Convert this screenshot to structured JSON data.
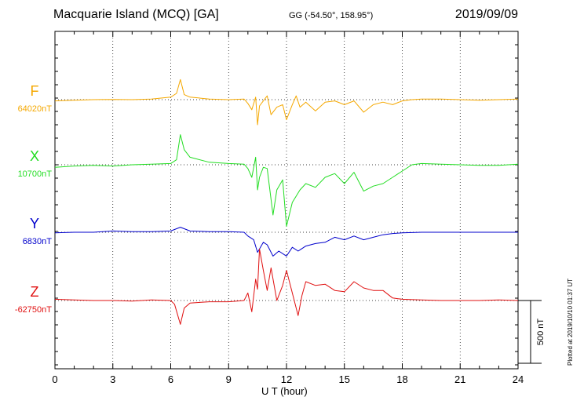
{
  "header": {
    "station": "Macquarie Island (MCQ)  [GA]",
    "coords": "GG (-54.50°, 158.95°)",
    "date": "2019/09/09"
  },
  "footer": {
    "plotted": "Plotted at 2019/10/10 01:37 UT"
  },
  "chart_data": {
    "type": "line",
    "xlabel": "U T (hour)",
    "xlim": [
      0,
      24
    ],
    "xticks": [
      0,
      3,
      6,
      9,
      12,
      15,
      18,
      21,
      24
    ],
    "scale_bar": {
      "label": "500 nT",
      "value": 500
    },
    "grid": "dotted",
    "series": [
      {
        "name": "F",
        "baseline": "64020nT",
        "color": "#f5a800",
        "points": [
          [
            0,
            -10
          ],
          [
            1,
            -5
          ],
          [
            2,
            0
          ],
          [
            3,
            2
          ],
          [
            4,
            0
          ],
          [
            5,
            5
          ],
          [
            6,
            20
          ],
          [
            6.3,
            50
          ],
          [
            6.5,
            160
          ],
          [
            6.7,
            40
          ],
          [
            7,
            20
          ],
          [
            8,
            5
          ],
          [
            9,
            0
          ],
          [
            9.8,
            5
          ],
          [
            10,
            -30
          ],
          [
            10.2,
            -80
          ],
          [
            10.4,
            20
          ],
          [
            10.5,
            -200
          ],
          [
            10.6,
            -50
          ],
          [
            10.8,
            -10
          ],
          [
            11,
            30
          ],
          [
            11.2,
            -120
          ],
          [
            11.5,
            -60
          ],
          [
            11.8,
            -40
          ],
          [
            12,
            -160
          ],
          [
            12.3,
            -40
          ],
          [
            12.5,
            30
          ],
          [
            12.7,
            -60
          ],
          [
            13,
            -20
          ],
          [
            13.5,
            -90
          ],
          [
            14,
            -20
          ],
          [
            14.5,
            -10
          ],
          [
            15,
            -40
          ],
          [
            15.5,
            -10
          ],
          [
            16,
            -100
          ],
          [
            16.5,
            -40
          ],
          [
            17,
            -20
          ],
          [
            17.5,
            -40
          ],
          [
            18,
            -10
          ],
          [
            18.5,
            0
          ],
          [
            19,
            5
          ],
          [
            20,
            5
          ],
          [
            21,
            0
          ],
          [
            22,
            -5
          ],
          [
            23,
            0
          ],
          [
            24,
            5
          ]
        ]
      },
      {
        "name": "X",
        "baseline": "10700nT",
        "color": "#22dd22",
        "points": [
          [
            0,
            -20
          ],
          [
            1,
            -10
          ],
          [
            2,
            -5
          ],
          [
            3,
            -10
          ],
          [
            4,
            0
          ],
          [
            5,
            5
          ],
          [
            6,
            10
          ],
          [
            6.3,
            40
          ],
          [
            6.5,
            240
          ],
          [
            6.7,
            120
          ],
          [
            7,
            60
          ],
          [
            8,
            20
          ],
          [
            9,
            10
          ],
          [
            9.8,
            5
          ],
          [
            10,
            -30
          ],
          [
            10.2,
            -100
          ],
          [
            10.4,
            60
          ],
          [
            10.5,
            -200
          ],
          [
            10.6,
            -100
          ],
          [
            10.8,
            -20
          ],
          [
            11,
            -30
          ],
          [
            11.3,
            -400
          ],
          [
            11.5,
            -200
          ],
          [
            11.8,
            -120
          ],
          [
            12,
            -490
          ],
          [
            12.3,
            -300
          ],
          [
            12.5,
            -250
          ],
          [
            12.7,
            -200
          ],
          [
            13,
            -150
          ],
          [
            13.5,
            -180
          ],
          [
            14,
            -100
          ],
          [
            14.5,
            -70
          ],
          [
            15,
            -150
          ],
          [
            15.5,
            -60
          ],
          [
            16,
            -210
          ],
          [
            16.5,
            -170
          ],
          [
            17,
            -150
          ],
          [
            17.5,
            -100
          ],
          [
            18,
            -50
          ],
          [
            18.5,
            0
          ],
          [
            19,
            10
          ],
          [
            20,
            5
          ],
          [
            21,
            0
          ],
          [
            22,
            -5
          ],
          [
            23,
            -5
          ],
          [
            24,
            5
          ]
        ]
      },
      {
        "name": "Y",
        "baseline": "6830nT",
        "color": "#0000cc",
        "points": [
          [
            0,
            -5
          ],
          [
            1,
            0
          ],
          [
            2,
            0
          ],
          [
            3,
            10
          ],
          [
            4,
            5
          ],
          [
            5,
            5
          ],
          [
            6,
            10
          ],
          [
            6.5,
            40
          ],
          [
            7,
            10
          ],
          [
            8,
            5
          ],
          [
            9,
            5
          ],
          [
            9.8,
            0
          ],
          [
            10,
            -30
          ],
          [
            10.3,
            -60
          ],
          [
            10.5,
            -160
          ],
          [
            10.8,
            -80
          ],
          [
            11,
            -100
          ],
          [
            11.3,
            -190
          ],
          [
            11.6,
            -150
          ],
          [
            12,
            -190
          ],
          [
            12.3,
            -120
          ],
          [
            12.6,
            -150
          ],
          [
            13,
            -110
          ],
          [
            13.5,
            -90
          ],
          [
            14,
            -80
          ],
          [
            14.5,
            -40
          ],
          [
            15,
            -60
          ],
          [
            15.5,
            -30
          ],
          [
            16,
            -60
          ],
          [
            16.5,
            -40
          ],
          [
            17,
            -20
          ],
          [
            17.5,
            -10
          ],
          [
            18,
            -5
          ],
          [
            19,
            0
          ],
          [
            20,
            0
          ],
          [
            21,
            0
          ],
          [
            22,
            0
          ],
          [
            23,
            0
          ],
          [
            24,
            0
          ]
        ]
      },
      {
        "name": "Z",
        "baseline": "-62750nT",
        "color": "#e01010",
        "points": [
          [
            0,
            10
          ],
          [
            1,
            5
          ],
          [
            2,
            0
          ],
          [
            3,
            0
          ],
          [
            4,
            -5
          ],
          [
            5,
            5
          ],
          [
            6,
            0
          ],
          [
            6.2,
            -30
          ],
          [
            6.5,
            -190
          ],
          [
            6.7,
            -60
          ],
          [
            7,
            -20
          ],
          [
            8,
            -10
          ],
          [
            9,
            -10
          ],
          [
            9.8,
            0
          ],
          [
            10,
            60
          ],
          [
            10.2,
            -90
          ],
          [
            10.4,
            170
          ],
          [
            10.5,
            90
          ],
          [
            10.6,
            410
          ],
          [
            10.8,
            240
          ],
          [
            11,
            80
          ],
          [
            11.2,
            260
          ],
          [
            11.5,
            0
          ],
          [
            11.8,
            120
          ],
          [
            12,
            240
          ],
          [
            12.3,
            60
          ],
          [
            12.6,
            -120
          ],
          [
            12.8,
            40
          ],
          [
            13,
            150
          ],
          [
            13.5,
            120
          ],
          [
            14,
            130
          ],
          [
            14.5,
            80
          ],
          [
            15,
            70
          ],
          [
            15.5,
            150
          ],
          [
            16,
            100
          ],
          [
            16.5,
            80
          ],
          [
            17,
            80
          ],
          [
            17.5,
            20
          ],
          [
            18,
            10
          ],
          [
            19,
            5
          ],
          [
            20,
            0
          ],
          [
            21,
            0
          ],
          [
            22,
            0
          ],
          [
            23,
            5
          ],
          [
            24,
            0
          ]
        ]
      }
    ]
  }
}
